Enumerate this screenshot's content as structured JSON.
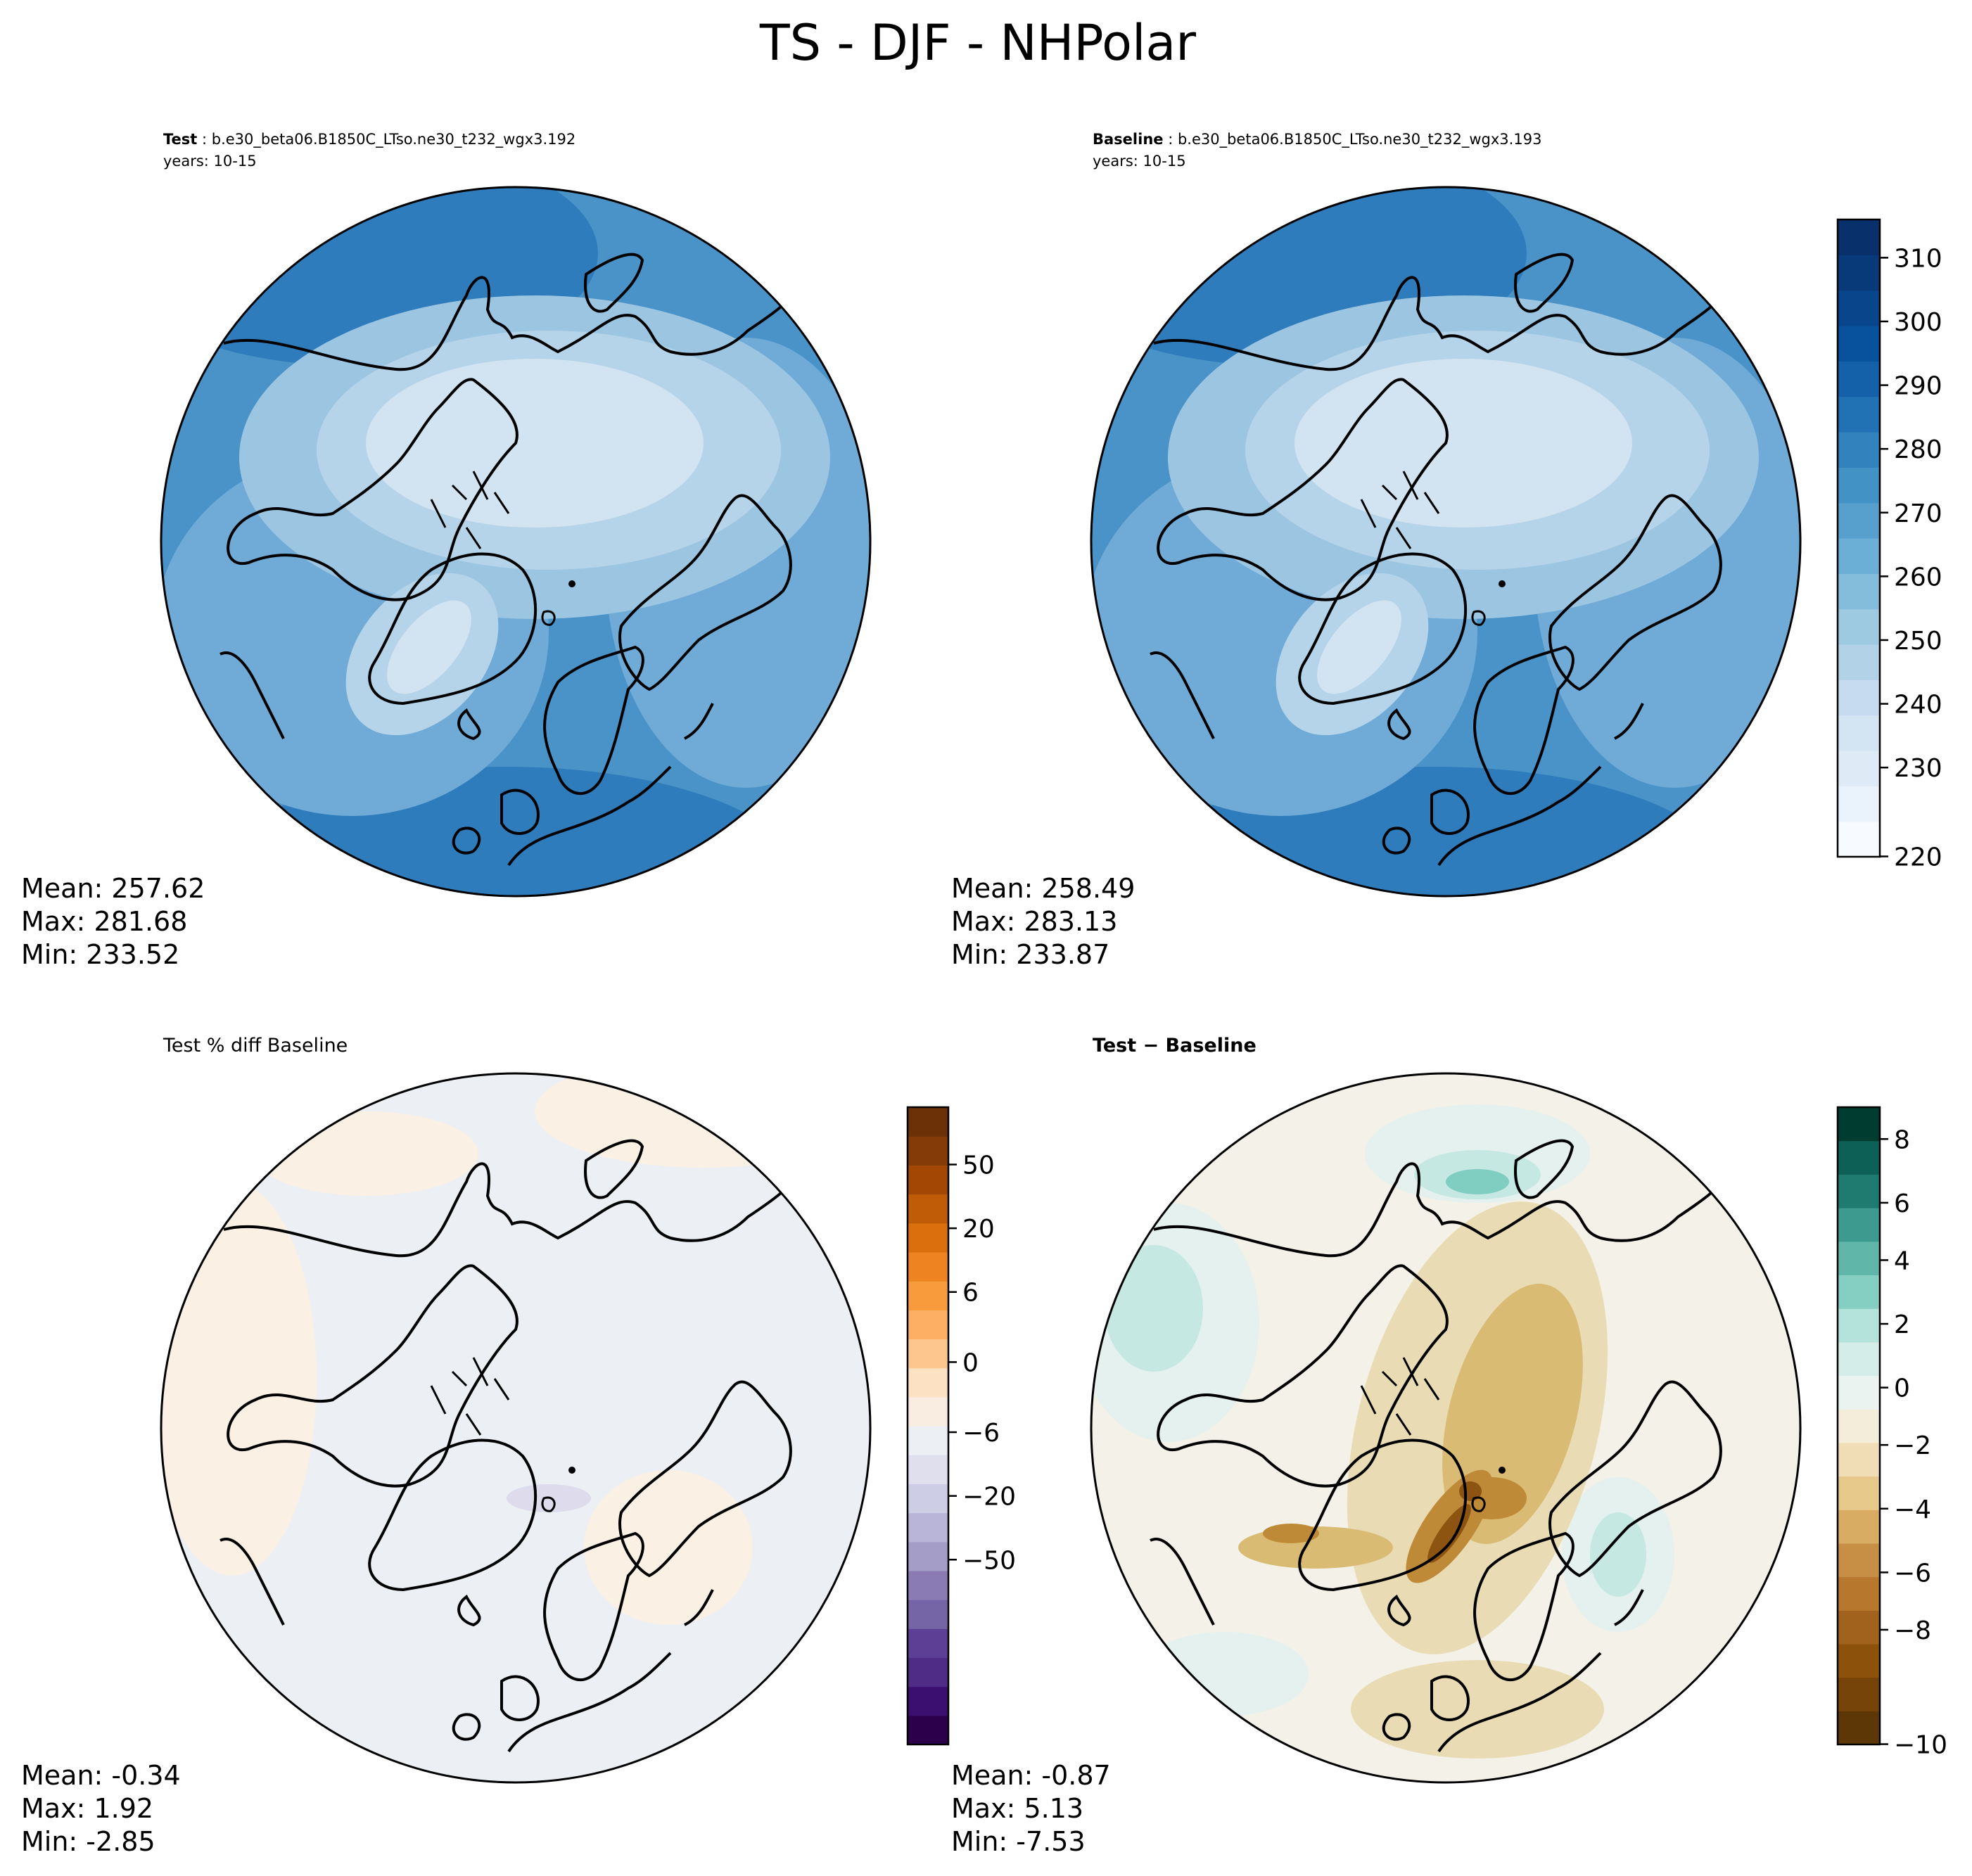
{
  "figure": {
    "title": "TS - DJF - NHPolar"
  },
  "panels": [
    {
      "id": "test",
      "title_bold": "Test",
      "title_rest": " : b.e30_beta06.B1850C_LTso.ne30_t232_wgx3.192",
      "years": "years: 10-15",
      "stats": {
        "mean": "Mean: 257.62",
        "max": "Max: 281.68",
        "min": "Min: 233.52"
      },
      "fill_colors": [
        "#d2e3f2",
        "#b6d4e9",
        "#9cc5e2",
        "#6fabd6",
        "#4a93c8",
        "#2f7cbc"
      ]
    },
    {
      "id": "baseline",
      "title_bold": "Baseline",
      "title_rest": " : b.e30_beta06.B1850C_LTso.ne30_t232_wgx3.193",
      "years": "years: 10-15",
      "stats": {
        "mean": "Mean: 258.49",
        "max": "Max: 283.13",
        "min": "Min: 233.87"
      },
      "fill_colors": [
        "#d2e3f2",
        "#b6d4e9",
        "#9cc5e2",
        "#6fabd6",
        "#4a93c8",
        "#2f7cbc"
      ]
    },
    {
      "id": "pctdiff",
      "title": "Test % diff Baseline",
      "stats": {
        "mean": "Mean: -0.34",
        "max": "Max:  1.92",
        "min": "Min: -2.85"
      },
      "fill_colors": [
        "#eceff4",
        "#faf0e4",
        "#dddbec"
      ]
    },
    {
      "id": "diff",
      "title": "Test − Baseline",
      "stats": {
        "mean": "Mean: -0.87",
        "max": "Max:  5.13",
        "min": "Min: -7.53"
      },
      "fill_colors": [
        "#f3f1e8",
        "#e4f1ee",
        "#c5e8e2",
        "#80cdc1",
        "#2e8f84",
        "#e9dcb5",
        "#d9bb73",
        "#bf8a37",
        "#8c5410"
      ]
    }
  ],
  "colorbars": [
    {
      "id": "cb-abs",
      "ticks": [
        "310",
        "300",
        "290",
        "280",
        "270",
        "260",
        "250",
        "240",
        "230",
        "220"
      ],
      "colors": [
        "#f7fbff",
        "#eaf3fb",
        "#deebf7",
        "#d3e4f3",
        "#c6dbef",
        "#b2d2e8",
        "#9ecae1",
        "#84bcdb",
        "#6baed6",
        "#57a0ce",
        "#4292c6",
        "#3282be",
        "#2171b5",
        "#1561a9",
        "#08519c",
        "#08458a",
        "#083a7a",
        "#08306b"
      ]
    },
    {
      "id": "cb-pct",
      "ticks": [
        "50",
        "20",
        "6",
        "0",
        "−6",
        "−20",
        "−50"
      ],
      "colors": [
        "#2d004b",
        "#3b0f6f",
        "#4f2d87",
        "#5e3f96",
        "#7565a6",
        "#8a7bb5",
        "#a39dc8",
        "#b9b5d8",
        "#cdcde6",
        "#e0dfee",
        "#eceff4",
        "#f9ece0",
        "#fde1c3",
        "#fdc68e",
        "#fdb063",
        "#f89b3d",
        "#ed8421",
        "#db6f0e",
        "#c05b08",
        "#a34705",
        "#843b07",
        "#6c3107"
      ]
    },
    {
      "id": "cb-diff",
      "ticks": [
        "8",
        "6",
        "4",
        "2",
        "0",
        "−2",
        "−4",
        "−6",
        "−8",
        "−10"
      ],
      "colors": [
        "#5d3806",
        "#764409",
        "#8c520c",
        "#a0621c",
        "#b7772d",
        "#c78f45",
        "#d8ad63",
        "#e6c98b",
        "#f0ddb5",
        "#f3edd9",
        "#eaf3f0",
        "#d4ede8",
        "#b3e3da",
        "#85cfc2",
        "#5fb6a9",
        "#3c9b8e",
        "#1f7b70",
        "#0c6056",
        "#003c30"
      ]
    }
  ]
}
